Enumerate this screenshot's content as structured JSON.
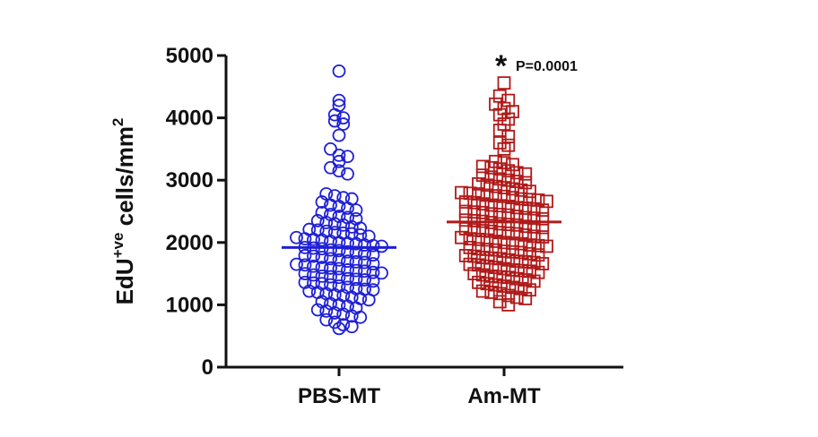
{
  "chart_data": {
    "type": "scatter",
    "subtype": "column-scatter",
    "title": "",
    "ylabel": {
      "main": "EdU",
      "superscript": "+ve",
      "rest": " cells/mm",
      "exponent": "2"
    },
    "xlabel": "",
    "ylim": [
      0,
      5000
    ],
    "yticks": [
      0,
      1000,
      2000,
      3000,
      4000,
      5000
    ],
    "grid": false,
    "legend": "none",
    "categories": [
      "PBS-MT",
      "Am-MT"
    ],
    "series": [
      {
        "category": "PBS-MT",
        "marker": "circle",
        "color": "#1f1fd6",
        "mean": 1920,
        "values": [
          4750,
          4280,
          4200,
          4050,
          4000,
          3950,
          3900,
          3720,
          3500,
          3400,
          3380,
          3300,
          3200,
          3150,
          3100,
          2780,
          2750,
          2720,
          2700,
          2650,
          2600,
          2580,
          2550,
          2520,
          2480,
          2450,
          2420,
          2400,
          2380,
          2350,
          2320,
          2300,
          2280,
          2250,
          2230,
          2210,
          2200,
          2180,
          2160,
          2150,
          2140,
          2120,
          2100,
          2080,
          2060,
          2050,
          2040,
          2020,
          2000,
          1990,
          1980,
          1960,
          1950,
          1940,
          1920,
          1910,
          1900,
          1880,
          1870,
          1850,
          1840,
          1820,
          1800,
          1790,
          1780,
          1760,
          1740,
          1720,
          1700,
          1690,
          1680,
          1660,
          1650,
          1640,
          1620,
          1600,
          1590,
          1580,
          1560,
          1550,
          1540,
          1520,
          1510,
          1500,
          1480,
          1460,
          1450,
          1440,
          1420,
          1410,
          1400,
          1380,
          1360,
          1350,
          1340,
          1320,
          1300,
          1280,
          1260,
          1250,
          1240,
          1220,
          1200,
          1180,
          1160,
          1150,
          1120,
          1100,
          1080,
          1050,
          1020,
          1000,
          980,
          950,
          920,
          900,
          870,
          850,
          820,
          800,
          760,
          720,
          680,
          650,
          620
        ]
      },
      {
        "category": "Am-MT",
        "marker": "square",
        "color": "#b01a1a",
        "mean": 2330,
        "values": [
          4560,
          4350,
          4280,
          4220,
          4150,
          4100,
          4050,
          3980,
          3900,
          3800,
          3700,
          3600,
          3560,
          3500,
          3300,
          3280,
          3250,
          3220,
          3200,
          3180,
          3150,
          3120,
          3100,
          3080,
          3050,
          3020,
          3000,
          2980,
          2960,
          2940,
          2920,
          2900,
          2880,
          2860,
          2840,
          2820,
          2800,
          2790,
          2780,
          2760,
          2750,
          2740,
          2720,
          2700,
          2690,
          2680,
          2660,
          2650,
          2640,
          2620,
          2600,
          2590,
          2580,
          2560,
          2550,
          2540,
          2520,
          2500,
          2490,
          2480,
          2460,
          2450,
          2440,
          2420,
          2400,
          2390,
          2380,
          2360,
          2350,
          2340,
          2320,
          2300,
          2290,
          2280,
          2260,
          2250,
          2240,
          2220,
          2200,
          2190,
          2180,
          2160,
          2150,
          2140,
          2120,
          2100,
          2090,
          2080,
          2060,
          2050,
          2040,
          2020,
          2000,
          1990,
          1980,
          1960,
          1950,
          1940,
          1920,
          1900,
          1890,
          1880,
          1860,
          1850,
          1840,
          1820,
          1800,
          1790,
          1780,
          1760,
          1750,
          1740,
          1720,
          1700,
          1690,
          1680,
          1660,
          1650,
          1640,
          1620,
          1600,
          1580,
          1560,
          1550,
          1540,
          1520,
          1500,
          1480,
          1460,
          1450,
          1440,
          1420,
          1400,
          1380,
          1360,
          1340,
          1320,
          1300,
          1280,
          1260,
          1240,
          1220,
          1200,
          1180,
          1150,
          1120,
          1100,
          1050,
          1000
        ]
      }
    ],
    "annotations": [
      {
        "target": "Am-MT",
        "star": "*",
        "text": "P=0.0001"
      }
    ]
  }
}
